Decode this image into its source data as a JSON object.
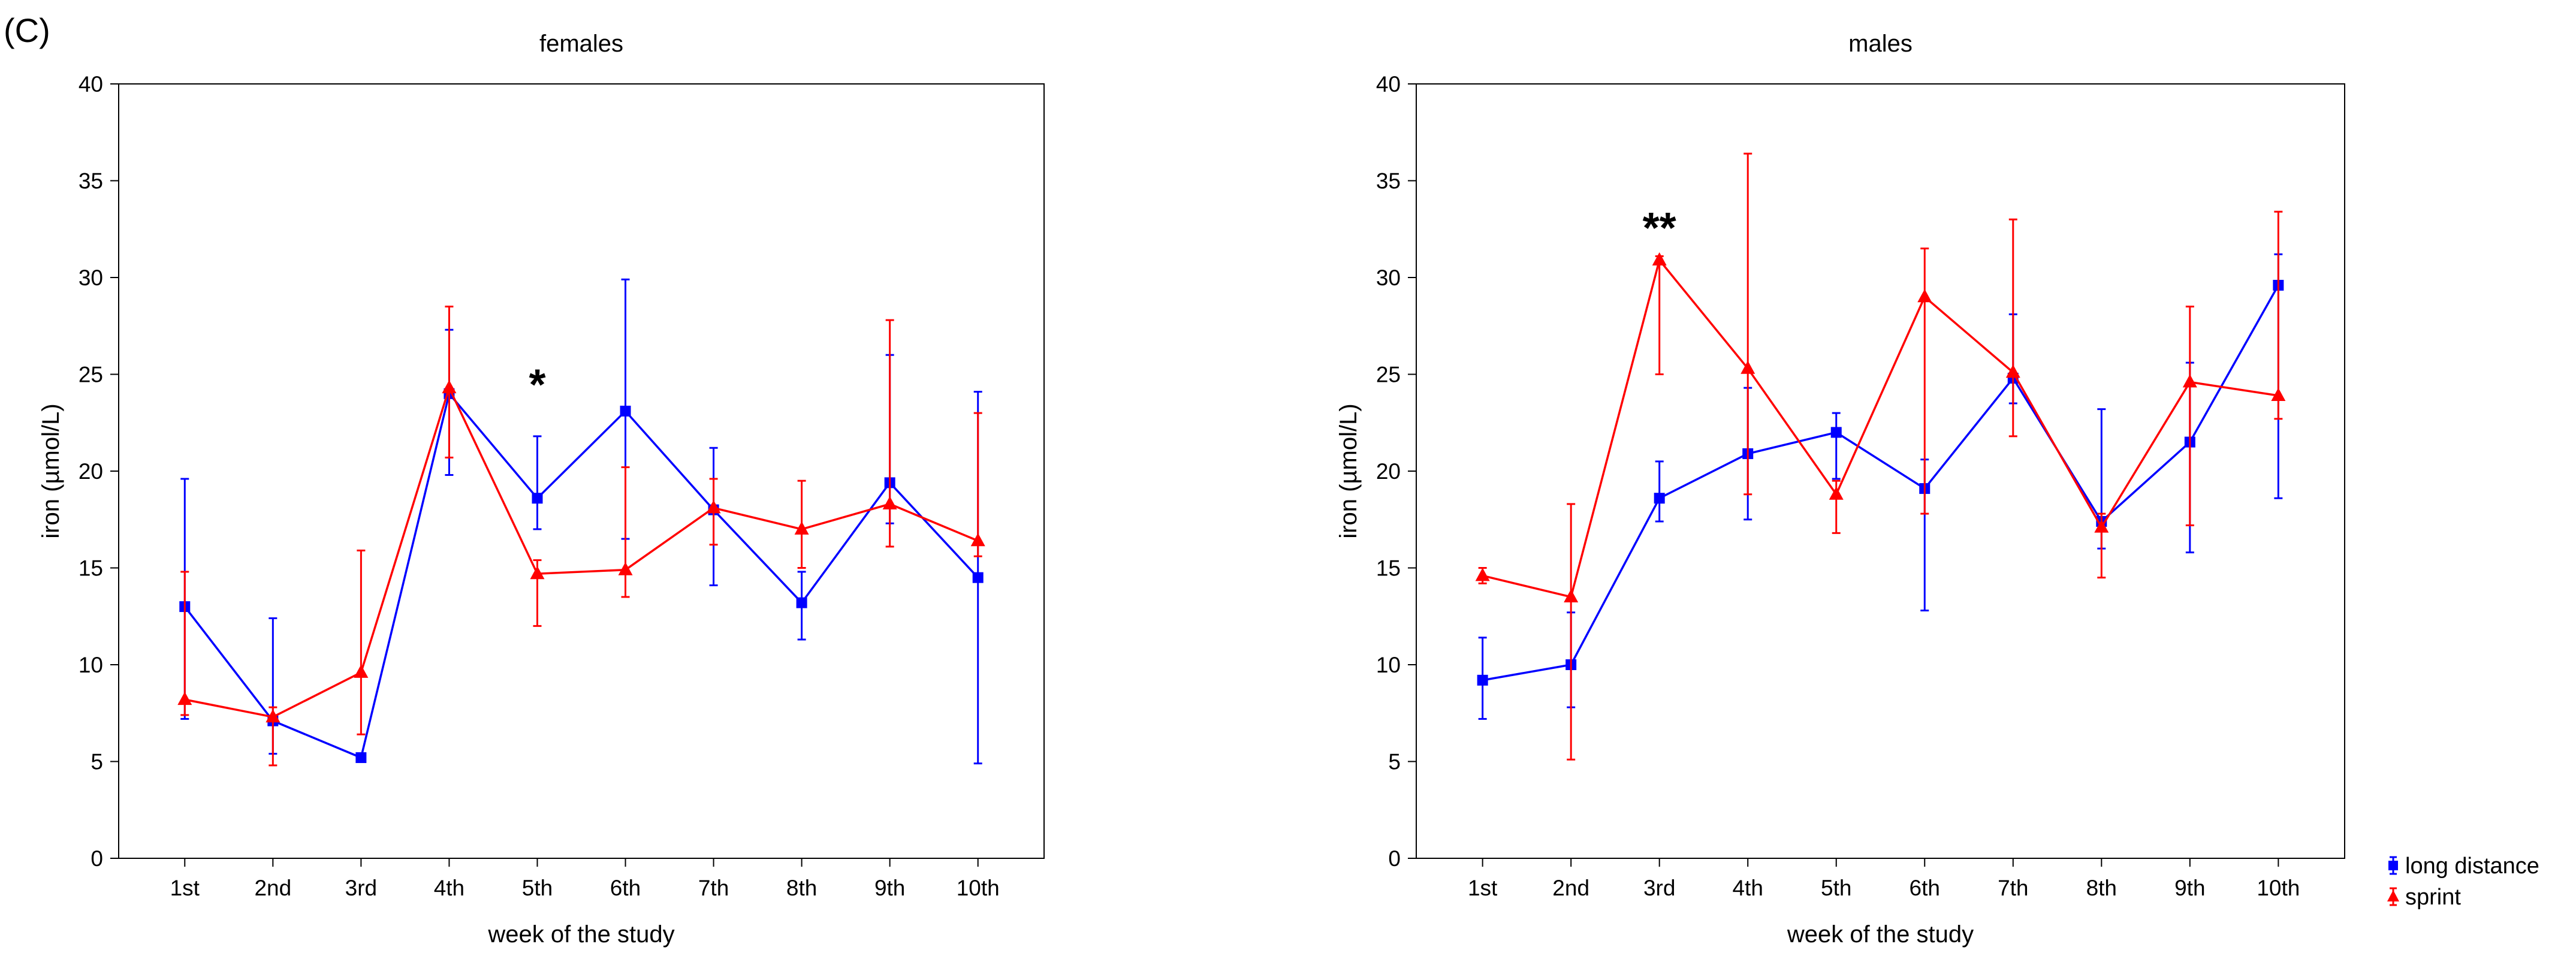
{
  "figure": {
    "panel_label": "(C)"
  },
  "colors": {
    "long_distance": "#0000ff",
    "sprint": "#ff0000",
    "axis": "#000000"
  },
  "legend": {
    "entries": [
      {
        "label": "long distance",
        "color": "#0000ff",
        "marker": "square"
      },
      {
        "label": "sprint",
        "color": "#ff0000",
        "marker": "triangle"
      }
    ]
  },
  "chart_data": [
    {
      "type": "line",
      "title": "females",
      "xlabel": "week of the study",
      "ylabel": "iron (µmol/L)",
      "ylim": [
        0,
        40
      ],
      "yticks": [
        "0",
        "5",
        "10",
        "15",
        "20",
        "25",
        "30",
        "35",
        "40"
      ],
      "categories": [
        "1st",
        "2nd",
        "3rd",
        "4th",
        "5th",
        "6th",
        "7th",
        "8th",
        "9th",
        "10th"
      ],
      "series": [
        {
          "name": "long distance",
          "marker": "square",
          "values": [
            13.0,
            7.1,
            5.2,
            24.0,
            18.6,
            23.1,
            18.0,
            13.2,
            19.4,
            14.5
          ],
          "lower": [
            7.2,
            5.4,
            5.0,
            19.8,
            17.0,
            16.5,
            14.1,
            11.3,
            17.3,
            4.9
          ],
          "upper": [
            19.6,
            12.4,
            5.4,
            27.3,
            21.8,
            29.9,
            21.2,
            14.8,
            26.0,
            24.1
          ]
        },
        {
          "name": "sprint",
          "marker": "triangle",
          "values": [
            8.2,
            7.3,
            9.6,
            24.3,
            14.7,
            14.9,
            18.1,
            17.0,
            18.3,
            16.4
          ],
          "lower": [
            7.4,
            4.8,
            6.4,
            20.7,
            12.0,
            13.5,
            16.2,
            15.0,
            16.1,
            15.6
          ],
          "upper": [
            14.8,
            7.8,
            15.9,
            28.5,
            15.4,
            20.2,
            19.6,
            19.5,
            27.8,
            23.0
          ]
        }
      ],
      "annotations": [
        {
          "text": "*",
          "category": "5th",
          "y": 24.5
        }
      ]
    },
    {
      "type": "line",
      "title": "males",
      "xlabel": "week of the study",
      "ylabel": "iron (µmol/L)",
      "ylim": [
        0,
        40
      ],
      "yticks": [
        "0",
        "5",
        "10",
        "15",
        "20",
        "25",
        "30",
        "35",
        "40"
      ],
      "categories": [
        "1st",
        "2nd",
        "3rd",
        "4th",
        "5th",
        "6th",
        "7th",
        "8th",
        "9th",
        "10th"
      ],
      "series": [
        {
          "name": "long distance",
          "marker": "square",
          "values": [
            9.2,
            10.0,
            18.6,
            20.9,
            22.0,
            19.1,
            24.8,
            17.4,
            21.5,
            29.6
          ],
          "lower": [
            7.2,
            7.8,
            17.4,
            17.5,
            19.6,
            12.8,
            23.5,
            16.0,
            15.8,
            18.6
          ],
          "upper": [
            11.4,
            12.7,
            20.5,
            24.3,
            23.0,
            20.6,
            28.1,
            23.2,
            25.6,
            31.2
          ]
        },
        {
          "name": "sprint",
          "marker": "triangle",
          "values": [
            14.6,
            13.5,
            30.9,
            25.3,
            18.8,
            29.0,
            25.1,
            17.1,
            24.6,
            23.9
          ],
          "lower": [
            14.2,
            5.1,
            25.0,
            18.8,
            16.8,
            17.8,
            21.8,
            14.5,
            17.2,
            22.7
          ],
          "upper": [
            15.0,
            18.3,
            31.1,
            36.4,
            19.5,
            31.5,
            33.0,
            17.8,
            28.5,
            33.4
          ]
        }
      ],
      "annotations": [
        {
          "text": "**",
          "category": "3rd",
          "y": 32.6
        }
      ]
    }
  ]
}
